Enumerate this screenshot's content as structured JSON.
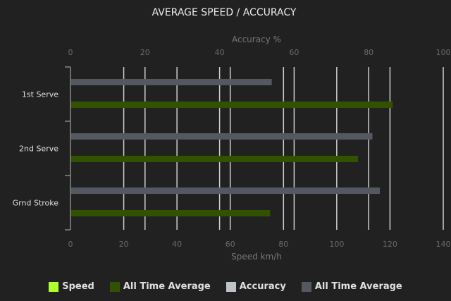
{
  "chart_data": {
    "type": "bar",
    "orientation": "horizontal",
    "title": "AVERAGE SPEED / ACCURACY",
    "categories": [
      "1st Serve",
      "2nd Serve",
      "Grnd Stroke"
    ],
    "top_axis": {
      "label": "Accuracy %",
      "range": [
        0,
        100
      ],
      "ticks": [
        0,
        20,
        40,
        60,
        80,
        100
      ]
    },
    "bottom_axis": {
      "label": "Speed km/h",
      "range": [
        0,
        140
      ],
      "ticks": [
        0,
        20,
        40,
        60,
        80,
        100,
        120,
        140
      ]
    },
    "grid": true,
    "legend_placement": "bottom",
    "series": [
      {
        "name": "Speed",
        "axis": "speed",
        "color": "#adff2f",
        "values": [
          null,
          null,
          null
        ]
      },
      {
        "name": "All Time Average",
        "axis": "speed",
        "color": "#335200",
        "values": [
          121,
          108,
          75
        ]
      },
      {
        "name": "Accuracy",
        "axis": "accuracy",
        "color": "#bfc3c7",
        "values": [
          null,
          null,
          null
        ]
      },
      {
        "name": "All Time Average",
        "axis": "accuracy",
        "color": "#545860",
        "values": [
          54,
          81,
          83
        ]
      }
    ]
  }
}
